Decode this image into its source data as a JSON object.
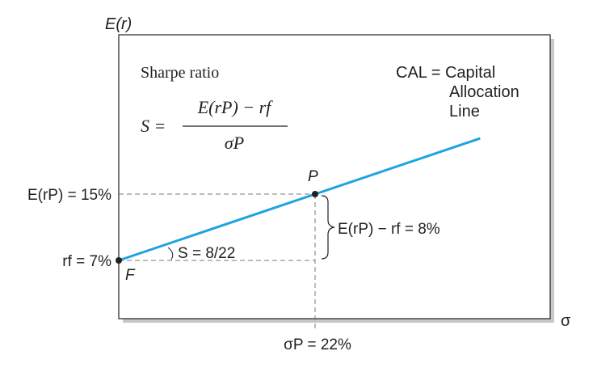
{
  "colors": {
    "cal_line": "#1fa3e0",
    "frame": "#231f20",
    "shadow": "#c8c8c8",
    "guide": "#7a7a7a",
    "text": "#231f20"
  },
  "axes": {
    "y_label": "E(r)",
    "x_label": "σ"
  },
  "sharpe_box": {
    "title": "Sharpe ratio",
    "lhs": "S =",
    "numerator": "E(rP) − rf",
    "denominator": "σP"
  },
  "cal_label": {
    "line1": "CAL = Capital",
    "line2": "Allocation",
    "line3": "Line"
  },
  "points": {
    "p_label": "P",
    "f_label": "F"
  },
  "annotations": {
    "er_p": "E(rP) = 15%",
    "rf": "rf = 7%",
    "sigma_p": "σP = 22%",
    "slope": "S = 8/22",
    "excess": "E(rP) − rf = 8%"
  },
  "chart_data": {
    "type": "line",
    "x_label": "σ",
    "y_label": "E(r)",
    "series": [
      {
        "name": "CAL = Capital Allocation Line",
        "x": [
          0,
          22
        ],
        "y": [
          7,
          15
        ]
      }
    ],
    "points": [
      {
        "label": "F",
        "x": 0,
        "y": 7
      },
      {
        "label": "P",
        "x": 22,
        "y": 15
      }
    ]
  }
}
